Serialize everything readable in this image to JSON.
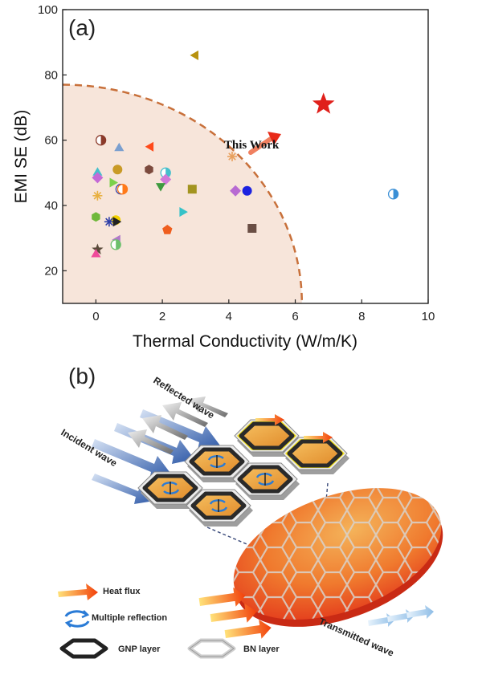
{
  "panels": {
    "a": "(a)",
    "b": "(b)"
  },
  "chart_data": {
    "type": "scatter",
    "title": "",
    "xlabel": "Thermal Conductivity (W/m/K)",
    "ylabel": "EMI SE (dB)",
    "xlim": [
      -1,
      10
    ],
    "ylim": [
      10,
      100
    ],
    "xticks": [
      "0",
      "2",
      "4",
      "6",
      "8",
      "10"
    ],
    "xtick_values": [
      0,
      2,
      4,
      6,
      8,
      10
    ],
    "yticks": [
      "20",
      "40",
      "60",
      "80",
      "100"
    ],
    "ytick_values": [
      20,
      40,
      60,
      80,
      100
    ],
    "grid": false,
    "boundary": {
      "style": "dashed quarter-ellipse",
      "x_intercept": 6.2,
      "y_at_x_min": 77,
      "color": "#c8703a",
      "fill": "#f7e5da"
    },
    "annotation": {
      "text": "This Work",
      "x": 5.5,
      "y": 57
    },
    "this_work": {
      "x": 6.85,
      "y": 71,
      "marker": "star",
      "color": "#e0201b"
    },
    "points": [
      {
        "x": 3.0,
        "y": 86,
        "marker": "tri-left",
        "color": "#b8920e"
      },
      {
        "x": 0.15,
        "y": 60,
        "marker": "half-circle",
        "color": "#8b3a2a"
      },
      {
        "x": 0.7,
        "y": 57.5,
        "marker": "tri-up",
        "color": "#7b9fcf"
      },
      {
        "x": 1.65,
        "y": 58,
        "marker": "tri-left",
        "color": "#ff4a1a"
      },
      {
        "x": 4.1,
        "y": 55,
        "marker": "asterisk",
        "color": "#e8a05e"
      },
      {
        "x": 0.65,
        "y": 51,
        "marker": "circle",
        "color": "#c99a26"
      },
      {
        "x": 1.6,
        "y": 51,
        "marker": "hexagon",
        "color": "#7c4a3d"
      },
      {
        "x": 2.1,
        "y": 50,
        "marker": "half-circle",
        "color": "#45bfcc"
      },
      {
        "x": 0.05,
        "y": 50,
        "marker": "tri-up",
        "color": "#45bfcc"
      },
      {
        "x": 0.05,
        "y": 48.5,
        "marker": "diamond",
        "color": "#c469d6"
      },
      {
        "x": 2.1,
        "y": 48,
        "marker": "diamond",
        "color": "#d07ad8"
      },
      {
        "x": 0.5,
        "y": 47,
        "marker": "tri-right",
        "color": "#7bd14a"
      },
      {
        "x": 0.75,
        "y": 45,
        "marker": "half-circle",
        "color": "#2e3ea8"
      },
      {
        "x": 0.8,
        "y": 45,
        "marker": "half-circle",
        "color": "#ff7a1a"
      },
      {
        "x": 1.95,
        "y": 46,
        "marker": "tri-down",
        "color": "#3e9a3e"
      },
      {
        "x": 2.9,
        "y": 45,
        "marker": "square",
        "color": "#a39420"
      },
      {
        "x": 4.2,
        "y": 44.5,
        "marker": "diamond",
        "color": "#b86ad2"
      },
      {
        "x": 4.55,
        "y": 44.5,
        "marker": "circle",
        "color": "#1c22e0"
      },
      {
        "x": 0.05,
        "y": 43,
        "marker": "asterisk",
        "color": "#e8b040"
      },
      {
        "x": 8.95,
        "y": 43.5,
        "marker": "half-circle",
        "color": "#3a8fd6"
      },
      {
        "x": 2.6,
        "y": 38,
        "marker": "tri-right",
        "color": "#36c2c8"
      },
      {
        "x": 0.0,
        "y": 36.5,
        "marker": "hexagon",
        "color": "#6fb83a"
      },
      {
        "x": 0.6,
        "y": 35.5,
        "marker": "circle",
        "color": "#f2d000"
      },
      {
        "x": 0.4,
        "y": 35,
        "marker": "asterisk",
        "color": "#2e3ea8"
      },
      {
        "x": 0.6,
        "y": 35,
        "marker": "tri-right",
        "color": "#222222"
      },
      {
        "x": 2.15,
        "y": 32.5,
        "marker": "pentagon",
        "color": "#ef5e1e"
      },
      {
        "x": 4.7,
        "y": 33,
        "marker": "square",
        "color": "#6a4e44"
      },
      {
        "x": 0.65,
        "y": 29.5,
        "marker": "tri-left",
        "color": "#b07ac8"
      },
      {
        "x": 0.6,
        "y": 28,
        "marker": "half-circle",
        "color": "#6cc06c"
      },
      {
        "x": 0.05,
        "y": 26.5,
        "marker": "star",
        "color": "#5a4a3a"
      },
      {
        "x": 0.0,
        "y": 25,
        "marker": "tri-up",
        "color": "#ef4b9a"
      }
    ]
  },
  "schematic": {
    "labels": {
      "incident": "Incident wave",
      "reflected": "Reflected wave",
      "transmitted": "Transmitted wave"
    },
    "legend": [
      {
        "icon": "heat-flux-arrow",
        "text": "Heat flux"
      },
      {
        "icon": "multiple-reflection",
        "text": "Multiple reflection"
      },
      {
        "icon": "gnp-hexagon",
        "text": "GNP layer"
      },
      {
        "icon": "bn-hexagon",
        "text": "BN layer"
      }
    ],
    "colors": {
      "gnp": "#2a2a2a",
      "bn": "#d9d9d9",
      "highlight": "#f5e000",
      "film_edge": "#e83a1c",
      "film_center": "#f3a44a",
      "incident": "#3a63b0",
      "reflected": "#9a9a9a",
      "transmitted": "#a8cdee",
      "heat": "#f25a10"
    }
  }
}
